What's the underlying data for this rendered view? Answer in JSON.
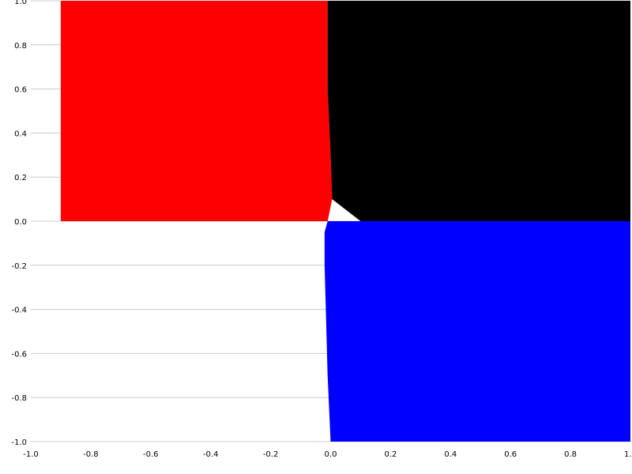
{
  "chart_data": {
    "type": "heatmap",
    "title": "",
    "xlabel": "",
    "ylabel": "",
    "xlim": [
      -1.0,
      1.0
    ],
    "ylim": [
      -1.0,
      1.0
    ],
    "x_ticks": [
      "-1.0",
      "-0.8",
      "-0.6",
      "-0.4",
      "-0.2",
      "0.0",
      "0.2",
      "0.4",
      "0.6",
      "0.8",
      "1.0"
    ],
    "y_ticks": [
      "1.0",
      "0.8",
      "0.6",
      "0.4",
      "0.2",
      "0.0",
      "-0.2",
      "-0.4",
      "-0.6",
      "-0.8",
      "-1.0"
    ],
    "grid": true,
    "regions": [
      {
        "color": "#ff0000",
        "boundary": [
          [
            -0.9,
            1.0
          ],
          [
            -0.01,
            1.0
          ],
          [
            -0.01,
            0.6
          ],
          [
            0.0,
            0.3
          ],
          [
            0.005,
            0.1
          ],
          [
            -0.01,
            0.0
          ],
          [
            -0.2,
            0.0
          ],
          [
            -0.9,
            0.0
          ]
        ]
      },
      {
        "color": "#000000",
        "boundary": [
          [
            -0.01,
            1.0
          ],
          [
            1.0,
            1.0
          ],
          [
            1.0,
            0.0
          ],
          [
            0.1,
            0.0
          ],
          [
            0.005,
            0.1
          ],
          [
            0.0,
            0.3
          ],
          [
            -0.01,
            0.6
          ]
        ]
      },
      {
        "color": "#0000ff",
        "boundary": [
          [
            -0.01,
            0.0
          ],
          [
            0.1,
            0.0
          ],
          [
            1.0,
            0.0
          ],
          [
            1.0,
            -1.0
          ],
          [
            0.0,
            -1.0
          ],
          [
            -0.01,
            -0.7
          ],
          [
            -0.02,
            -0.2
          ],
          [
            -0.02,
            -0.05
          ]
        ]
      }
    ]
  }
}
